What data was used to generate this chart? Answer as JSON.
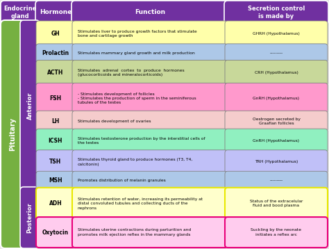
{
  "header_bg": "#7030a0",
  "col_headers": [
    "Endocrine\ngland",
    "Hormone",
    "Function",
    "Secretion control\nis made by"
  ],
  "pituitary_color": "#76b041",
  "anterior_color": "#7030a0",
  "posterior_color": "#7030a0",
  "bg_color": "#e8e8e8",
  "rows": [
    {
      "hormone": "GH",
      "hormone_bg": "#ffffaa",
      "function": "Stimulates liver to produce growth factors that stimulate\nbone and cartilage growth",
      "function_bg": "#ffffaa",
      "secretion": "GHRH (Hypothalamus)",
      "secretion_bg": "#ffffaa",
      "border_color": "gray",
      "section": "anterior"
    },
    {
      "hormone": "Prolactin",
      "hormone_bg": "#adc8e8",
      "function": "Stimulates mammary gland growth and milk production",
      "function_bg": "#adc8e8",
      "secretion": "---------",
      "secretion_bg": "#adc8e8",
      "border_color": "gray",
      "section": "anterior"
    },
    {
      "hormone": "ACTH",
      "hormone_bg": "#c8d89a",
      "function": "Stimulates  adrenal  cortex  to  produce  hormones\n(glucocorticoids and mineralocorticoids)",
      "function_bg": "#c8d89a",
      "secretion": "CRH (Hypothalamus)",
      "secretion_bg": "#c8d89a",
      "border_color": "gray",
      "section": "anterior"
    },
    {
      "hormone": "FSH",
      "hormone_bg": "#ff99cc",
      "function": "- Stimulates development of follicles\n- Stimulates the production of sperm in the seminiferous\ntubules of the testes",
      "function_bg": "#ff99cc",
      "secretion": "GnRH (Hypothalamus)",
      "secretion_bg": "#ff99cc",
      "border_color": "gray",
      "section": "anterior"
    },
    {
      "hormone": "LH",
      "hormone_bg": "#f5cccc",
      "function": "Stimulates development of ovaries",
      "function_bg": "#f5cccc",
      "secretion": "Oestrogen secreted by\nGraafian follicles",
      "secretion_bg": "#f5cccc",
      "border_color": "gray",
      "section": "anterior"
    },
    {
      "hormone": "ICSH",
      "hormone_bg": "#90f0c0",
      "function": "Stimulates testosterone production by the interstitial cells of\nthe testes",
      "function_bg": "#90f0c0",
      "secretion": "GnRH (Hypothalamus)",
      "secretion_bg": "#90f0c0",
      "border_color": "gray",
      "section": "anterior"
    },
    {
      "hormone": "TSH",
      "hormone_bg": "#c0c0f8",
      "function": "Stimulates thyroid gland to produce hormones (T3, T4,\ncalcitonin)",
      "function_bg": "#c0c0f8",
      "secretion": "TRH (Hypothalamus)",
      "secretion_bg": "#c0c0f8",
      "border_color": "gray",
      "section": "anterior"
    },
    {
      "hormone": "MSH",
      "hormone_bg": "#adc8e8",
      "function": "Promotes distribution of melanin granules",
      "function_bg": "#adc8e8",
      "secretion": "---------",
      "secretion_bg": "#adc8e8",
      "border_color": "gray",
      "section": "anterior"
    },
    {
      "hormone": "ADH",
      "hormone_bg": "#ffffcc",
      "function": "Stimulates retention of water, increasing its permeability at\ndistal convoluted tubules and collecting ducts of the\nnephrons",
      "function_bg": "#ffffcc",
      "secretion": "Status of the extracelular\nfluid and bood plasma",
      "secretion_bg": "#ffffcc",
      "border_color": "#e8e800",
      "section": "posterior"
    },
    {
      "hormone": "Oxytocin",
      "hormone_bg": "#ffccee",
      "function": "Stimulates uterine contractions during parturition and\npromotes milk ejection reflex in the mammary glands",
      "function_bg": "#ffccee",
      "secretion": "Suckling by the neonate\ninitiates a reflex arc",
      "secretion_bg": "#ffccee",
      "border_color": "#e8007a",
      "section": "posterior"
    }
  ]
}
